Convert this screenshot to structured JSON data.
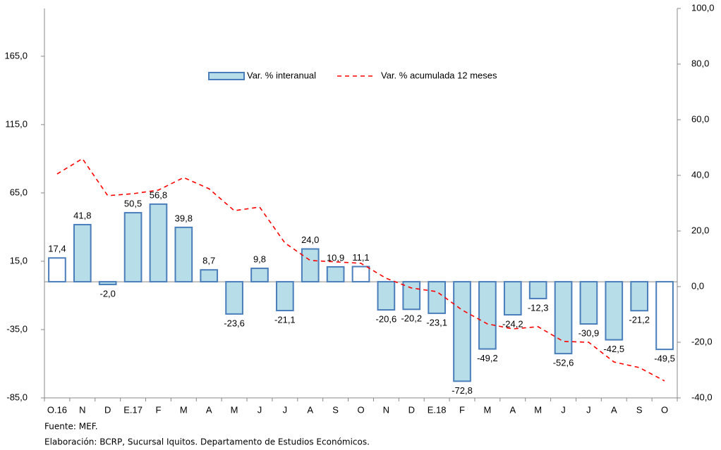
{
  "chart_data": {
    "type": "bar",
    "categories": [
      "O.16",
      "N",
      "D",
      "E.17",
      "F",
      "M",
      "A",
      "M",
      "J",
      "J",
      "A",
      "S",
      "O",
      "N",
      "D",
      "E.18",
      "F",
      "M",
      "A",
      "M",
      "J",
      "J",
      "A",
      "S",
      "O"
    ],
    "series": [
      {
        "name": "Var. % interanual",
        "type": "bar",
        "color": "#b7dee8",
        "edge_color": "#4a7ebb",
        "point_colors": [
          "#ffffff",
          "#b7dee8",
          "#b7dee8",
          "#b7dee8",
          "#b7dee8",
          "#b7dee8",
          "#b7dee8",
          "#b7dee8",
          "#b7dee8",
          "#b7dee8",
          "#b7dee8",
          "#b7dee8",
          "#ffffff",
          "#b7dee8",
          "#b7dee8",
          "#b7dee8",
          "#b7dee8",
          "#b7dee8",
          "#b7dee8",
          "#b7dee8",
          "#b7dee8",
          "#b7dee8",
          "#b7dee8",
          "#b7dee8",
          "#ffffff"
        ],
        "values": [
          17.4,
          41.8,
          -2.0,
          50.5,
          56.8,
          39.8,
          8.7,
          -23.6,
          9.8,
          -21.1,
          24.0,
          10.9,
          11.1,
          -20.6,
          -20.2,
          -23.1,
          -72.8,
          -49.2,
          -24.2,
          -12.3,
          -52.6,
          -30.9,
          -42.5,
          -21.2,
          -49.5
        ],
        "value_labels": [
          "17,4",
          "41,8",
          "-2,0",
          "50,5",
          "56,8",
          "39,8",
          "8,7",
          "-23,6",
          "9,8",
          "-21,1",
          "24,0",
          "10,9",
          "11,1",
          "-20,6",
          "-20,2",
          "-23,1",
          "-72,8",
          "-49,2",
          "-24,2",
          "-12,3",
          "-52,6",
          "-30,9",
          "-42,5",
          "-21,2",
          "-49,5"
        ]
      },
      {
        "name": "Var. % acumulada 12 meses",
        "type": "line",
        "axis": "y2",
        "color": "#ff0000",
        "dashed": true,
        "values": [
          40.5,
          46,
          32.7,
          33.4,
          34.7,
          39.2,
          35.2,
          27.3,
          28.6,
          15.7,
          9.4,
          8.9,
          8.4,
          3,
          -0.5,
          -1.8,
          -8.4,
          -13.4,
          -15.2,
          -14.4,
          -19.7,
          -20,
          -27.1,
          -29.1,
          -33.9
        ]
      }
    ],
    "ylim": [
      -85,
      200
    ],
    "yticks": [
      {
        "value": -85,
        "label": "-85,0"
      },
      {
        "value": -35,
        "label": "-35,0"
      },
      {
        "value": 15,
        "label": "15,0"
      },
      {
        "value": 65,
        "label": "65,0"
      },
      {
        "value": 115,
        "label": "115,0"
      },
      {
        "value": 165,
        "label": "165,0"
      }
    ],
    "y2lim": [
      -40,
      100
    ],
    "y2ticks": [
      {
        "value": -40,
        "label": "-40,0"
      },
      {
        "value": -20,
        "label": "-20,0"
      },
      {
        "value": 0,
        "label": "0,0"
      },
      {
        "value": 20,
        "label": "20,0"
      },
      {
        "value": 40,
        "label": "40,0"
      },
      {
        "value": 60,
        "label": "60,0"
      },
      {
        "value": 80,
        "label": "80,0"
      },
      {
        "value": 100,
        "label": "100,0"
      }
    ],
    "grid": false,
    "legend": "top",
    "notes": [
      "Fuente: MEF.",
      "Elaboración: BCRP, Sucursal Iquitos. Departamento de Estudios Económicos."
    ]
  }
}
